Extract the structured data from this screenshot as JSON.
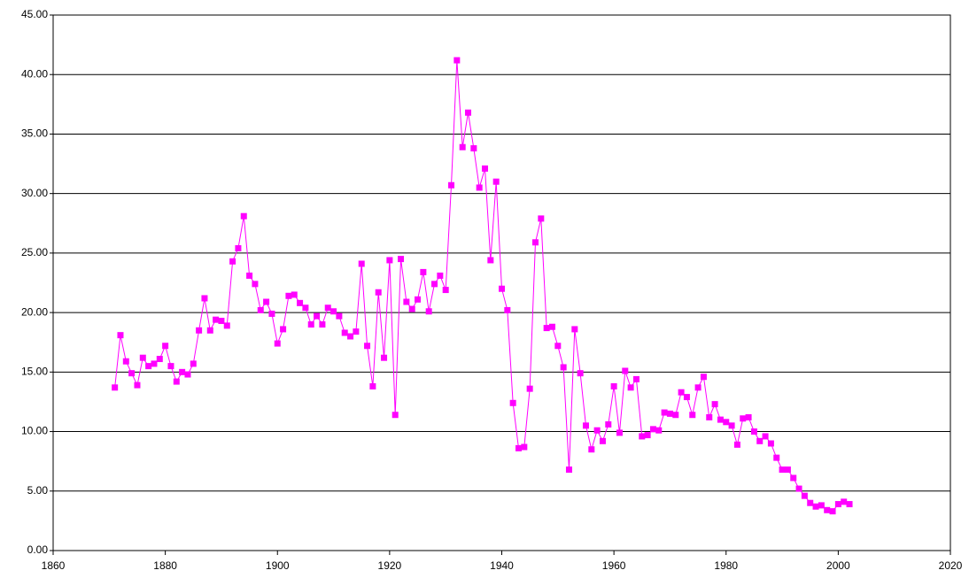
{
  "chart_data": {
    "type": "line",
    "color": "#ff00ff",
    "grid": true,
    "x": [
      1871,
      1872,
      1873,
      1874,
      1875,
      1876,
      1877,
      1878,
      1879,
      1880,
      1881,
      1882,
      1883,
      1884,
      1885,
      1886,
      1887,
      1888,
      1889,
      1890,
      1891,
      1892,
      1893,
      1894,
      1895,
      1896,
      1897,
      1898,
      1899,
      1900,
      1901,
      1902,
      1903,
      1904,
      1905,
      1906,
      1907,
      1908,
      1909,
      1910,
      1911,
      1912,
      1913,
      1914,
      1915,
      1916,
      1917,
      1918,
      1919,
      1920,
      1921,
      1922,
      1923,
      1924,
      1925,
      1926,
      1927,
      1928,
      1929,
      1930,
      1931,
      1932,
      1933,
      1934,
      1935,
      1936,
      1937,
      1938,
      1939,
      1940,
      1941,
      1942,
      1943,
      1944,
      1945,
      1946,
      1947,
      1948,
      1949,
      1950,
      1951,
      1952,
      1953,
      1954,
      1955,
      1956,
      1957,
      1958,
      1959,
      1960,
      1961,
      1962,
      1963,
      1964,
      1965,
      1966,
      1967,
      1968,
      1969,
      1970,
      1971,
      1972,
      1973,
      1974,
      1975,
      1976,
      1977,
      1978,
      1979,
      1980,
      1981,
      1982,
      1983,
      1984,
      1985,
      1986,
      1987,
      1988,
      1989,
      1990,
      1991,
      1992,
      1993,
      1994,
      1995,
      1996,
      1997,
      1998,
      1999,
      2000,
      2001,
      2002
    ],
    "values": [
      13.7,
      18.1,
      15.9,
      14.9,
      13.9,
      16.2,
      15.5,
      15.7,
      16.1,
      17.2,
      15.5,
      14.2,
      15.0,
      14.8,
      15.7,
      18.5,
      21.2,
      18.5,
      19.4,
      19.3,
      18.9,
      24.3,
      25.4,
      28.1,
      23.1,
      22.4,
      20.2,
      20.9,
      19.9,
      17.4,
      18.6,
      21.4,
      21.5,
      20.8,
      20.4,
      19.0,
      19.7,
      19.0,
      20.4,
      20.1,
      19.7,
      18.3,
      18.0,
      18.4,
      24.1,
      17.2,
      13.8,
      21.7,
      16.2,
      24.4,
      11.4,
      24.5,
      20.9,
      20.3,
      21.1,
      23.4,
      20.1,
      22.4,
      23.1,
      21.9,
      30.7,
      41.2,
      33.9,
      36.8,
      33.8,
      30.5,
      32.1,
      24.4,
      31.0,
      22.0,
      20.2,
      12.4,
      8.6,
      8.7,
      13.6,
      25.9,
      27.9,
      18.7,
      18.8,
      17.2,
      15.4,
      6.8,
      18.6,
      14.9,
      10.5,
      8.5,
      10.1,
      9.2,
      10.6,
      13.8,
      9.9,
      15.1,
      13.7,
      14.4,
      9.6,
      9.7,
      10.2,
      10.1,
      11.6,
      11.5,
      11.4,
      13.3,
      12.9,
      11.4,
      13.7,
      14.6,
      11.2,
      12.3,
      11.0,
      10.8,
      10.5,
      8.9,
      11.1,
      11.2,
      10.0,
      9.2,
      9.6,
      9.0,
      7.8,
      6.8,
      6.8,
      6.1,
      5.2,
      4.6,
      4.0,
      3.7,
      3.8,
      3.4,
      3.3,
      3.9,
      4.1,
      3.9
    ],
    "xlim": [
      1860,
      2020
    ],
    "xticks": [
      1860,
      1880,
      1900,
      1920,
      1940,
      1960,
      1980,
      2000,
      2020
    ],
    "ylim": [
      0,
      45
    ],
    "yticks": [
      {
        "value": 0,
        "label": "0.00"
      },
      {
        "value": 5,
        "label": "5.00"
      },
      {
        "value": 10,
        "label": "10.00"
      },
      {
        "value": 15,
        "label": "15.00"
      },
      {
        "value": 20,
        "label": "20.00"
      },
      {
        "value": 25,
        "label": "25.00"
      },
      {
        "value": 30,
        "label": "30.00"
      },
      {
        "value": 35,
        "label": "35.00"
      },
      {
        "value": 40,
        "label": "40.00"
      },
      {
        "value": 45,
        "label": "45.00"
      }
    ]
  }
}
